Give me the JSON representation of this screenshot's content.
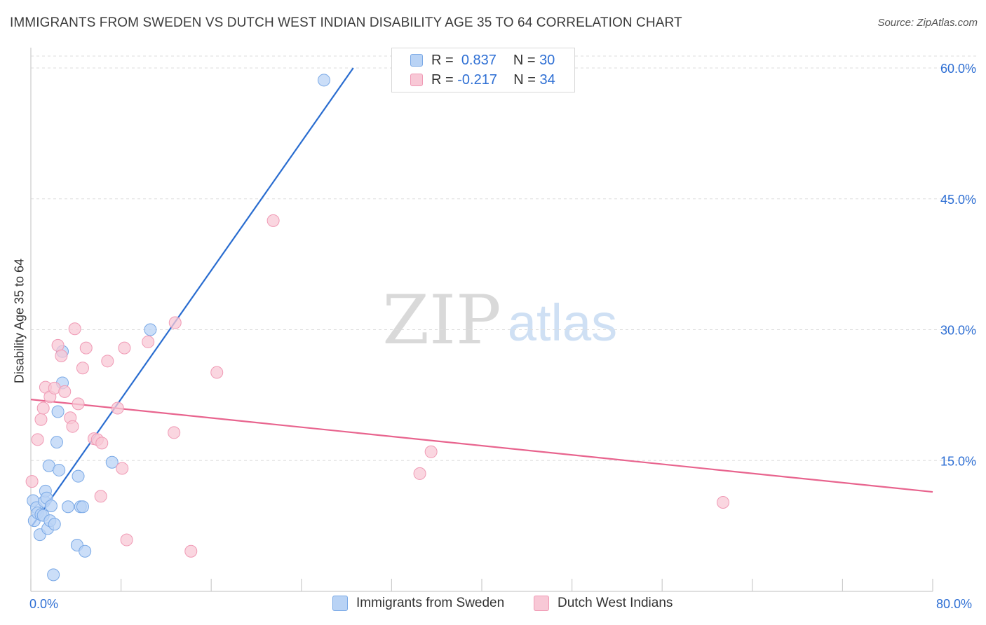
{
  "title": "IMMIGRANTS FROM SWEDEN VS DUTCH WEST INDIAN DISABILITY AGE 35 TO 64 CORRELATION CHART",
  "source": "Source: ZipAtlas.com",
  "watermark": {
    "zip": "ZIP",
    "atlas": "atlas"
  },
  "legend": {
    "rows": [
      {
        "r_label": "R =",
        "r_value": "0.837",
        "n_label": "N =",
        "n_value": "30"
      },
      {
        "r_label": "R =",
        "r_value": "-0.217",
        "n_label": "N =",
        "n_value": "34"
      }
    ]
  },
  "colors": {
    "blue_fill": "#b9d3f5",
    "blue_stroke": "#7aa9e6",
    "blue_line": "#2a6dd0",
    "pink_fill": "#f8c8d6",
    "pink_stroke": "#f09ab5",
    "pink_line": "#e8648e",
    "grid": "#dddddd",
    "tick_text": "#2e6fd4"
  },
  "chart_data": {
    "type": "scatter",
    "title": "IMMIGRANTS FROM SWEDEN VS DUTCH WEST INDIAN DISABILITY AGE 35 TO 64 CORRELATION CHART",
    "xlabel": "",
    "ylabel": "Disability Age 35 to 64",
    "xlim": [
      0,
      80
    ],
    "ylim": [
      0,
      60
    ],
    "x_tick_labels": [
      "0.0%",
      "80.0%"
    ],
    "y_ticks": [
      15,
      30,
      45,
      60
    ],
    "y_tick_labels": [
      "15.0%",
      "30.0%",
      "45.0%",
      "60.0%"
    ],
    "series": [
      {
        "name": "Immigrants from Sweden",
        "color": "blue",
        "r": 0.837,
        "n": 30,
        "trend": {
          "x0": 0.1,
          "y0": 7.5,
          "x1": 28.6,
          "y1": 60
        },
        "points": [
          [
            0.2,
            10.4
          ],
          [
            0.3,
            8.1
          ],
          [
            0.5,
            9.6
          ],
          [
            0.6,
            9.0
          ],
          [
            0.8,
            6.5
          ],
          [
            0.9,
            8.8
          ],
          [
            1.1,
            8.7
          ],
          [
            1.2,
            10.3
          ],
          [
            1.3,
            11.5
          ],
          [
            1.4,
            10.7
          ],
          [
            1.5,
            7.2
          ],
          [
            1.6,
            14.4
          ],
          [
            1.7,
            8.1
          ],
          [
            1.8,
            9.8
          ],
          [
            2.0,
            1.9
          ],
          [
            2.1,
            7.7
          ],
          [
            2.3,
            17.1
          ],
          [
            2.4,
            20.6
          ],
          [
            2.5,
            13.9
          ],
          [
            2.8,
            27.5
          ],
          [
            2.8,
            23.9
          ],
          [
            3.3,
            9.7
          ],
          [
            4.1,
            5.3
          ],
          [
            4.2,
            13.2
          ],
          [
            4.4,
            9.7
          ],
          [
            4.6,
            9.7
          ],
          [
            4.8,
            4.6
          ],
          [
            7.2,
            14.8
          ],
          [
            10.6,
            30.0
          ],
          [
            26.0,
            58.6
          ]
        ]
      },
      {
        "name": "Dutch West Indians",
        "color": "pink",
        "r": -0.217,
        "n": 34,
        "trend": {
          "x0": 0.0,
          "y0": 22.0,
          "x1": 80.0,
          "y1": 11.4
        },
        "points": [
          [
            0.1,
            12.6
          ],
          [
            0.6,
            17.4
          ],
          [
            0.9,
            19.7
          ],
          [
            1.1,
            21.0
          ],
          [
            1.3,
            23.4
          ],
          [
            1.7,
            22.3
          ],
          [
            2.1,
            23.3
          ],
          [
            2.4,
            28.2
          ],
          [
            2.7,
            27.0
          ],
          [
            3.0,
            22.9
          ],
          [
            3.5,
            19.9
          ],
          [
            3.7,
            18.9
          ],
          [
            3.9,
            30.1
          ],
          [
            4.2,
            21.5
          ],
          [
            4.6,
            25.6
          ],
          [
            4.9,
            27.9
          ],
          [
            5.6,
            17.5
          ],
          [
            5.9,
            17.4
          ],
          [
            6.2,
            10.9
          ],
          [
            6.3,
            17.0
          ],
          [
            6.8,
            26.4
          ],
          [
            7.7,
            21.0
          ],
          [
            8.1,
            14.1
          ],
          [
            8.3,
            27.9
          ],
          [
            8.5,
            5.9
          ],
          [
            10.4,
            28.6
          ],
          [
            12.7,
            18.2
          ],
          [
            12.8,
            30.8
          ],
          [
            14.2,
            4.6
          ],
          [
            16.5,
            25.1
          ],
          [
            21.5,
            42.5
          ],
          [
            34.5,
            13.5
          ],
          [
            35.5,
            16.0
          ],
          [
            61.4,
            10.2
          ]
        ]
      }
    ]
  },
  "bottom_legend": {
    "series_1": "Immigrants from Sweden",
    "series_2": "Dutch West Indians"
  }
}
